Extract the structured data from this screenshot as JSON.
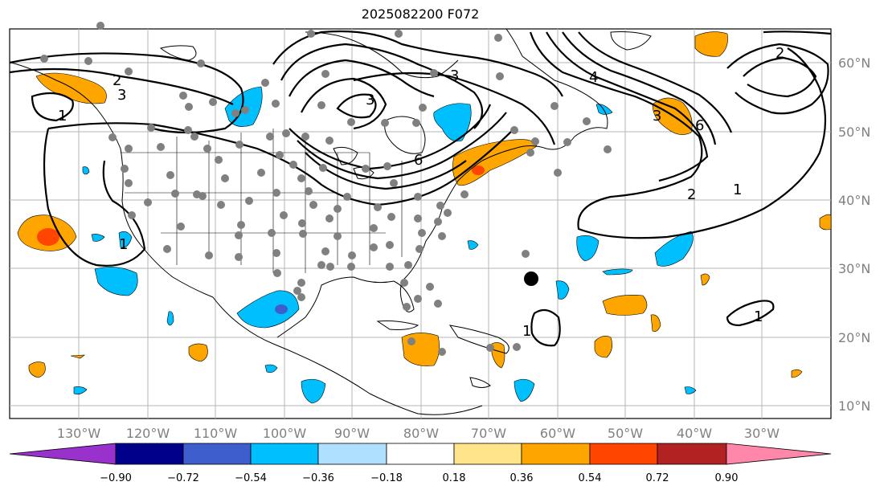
{
  "title": "2025082200 F072",
  "map": {
    "lon_labels": [
      "130°W",
      "120°W",
      "110°W",
      "100°W",
      "90°W",
      "80°W",
      "70°W",
      "60°W",
      "50°W",
      "40°W",
      "30°W"
    ],
    "lat_labels": [
      "60°N",
      "50°N",
      "40°N",
      "30°N",
      "20°N",
      "10°N"
    ],
    "grid": true,
    "contour_labels": [
      "2",
      "3",
      "3",
      "3",
      "6",
      "1",
      "4",
      "2",
      "6",
      "3",
      "2",
      "1",
      "1",
      "1",
      "1"
    ]
  },
  "colorbar": {
    "colors": [
      "#9932cc",
      "#00008b",
      "#3d5ecc",
      "#00bfff",
      "#b0e0ff",
      "#ffffff",
      "#ffe48a",
      "#ffa500",
      "#ff4500",
      "#b22222",
      "#ff88aa"
    ],
    "tick_labels": [
      "−0.90",
      "−0.72",
      "−0.54",
      "−0.36",
      "−0.18",
      "0.18",
      "0.36",
      "0.54",
      "0.72",
      "0.90"
    ]
  }
}
